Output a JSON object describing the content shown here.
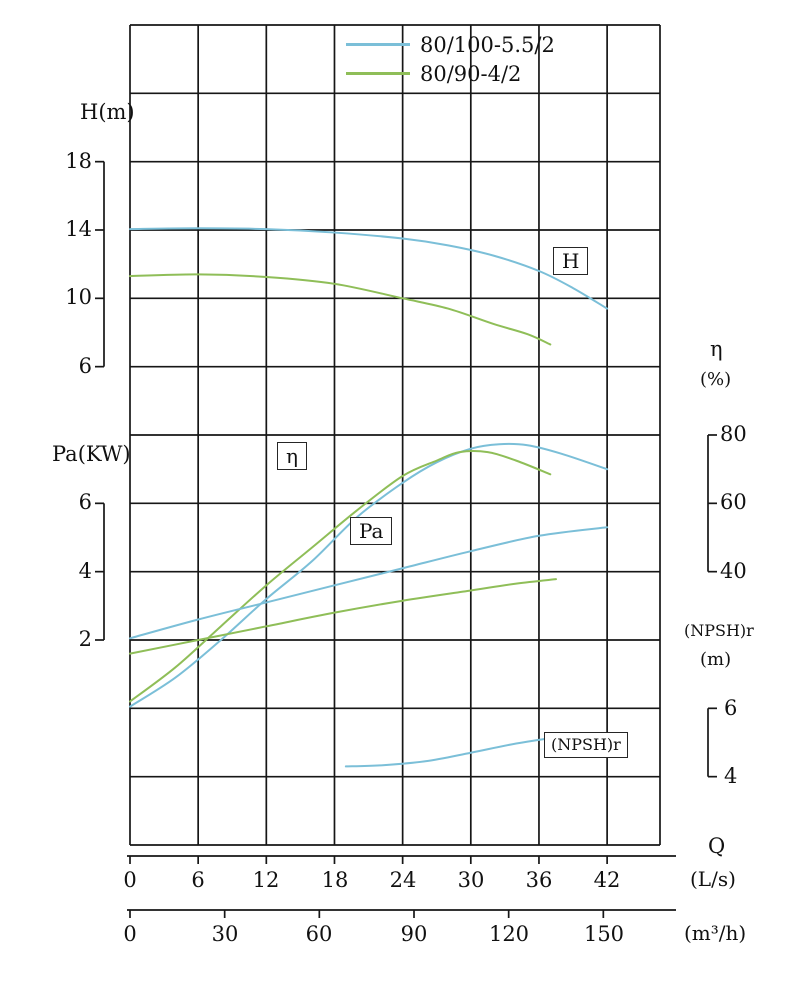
{
  "legend": {
    "items": [
      {
        "label": "80/100-5.5/2",
        "color": "#7bbfd8"
      },
      {
        "label": "80/90-4/2",
        "color": "#8fbe58"
      }
    ]
  },
  "axes": {
    "h": {
      "label": "H(m)",
      "ticks": [
        "18",
        "14",
        "10",
        "6"
      ]
    },
    "pa": {
      "label": "Pa(KW)",
      "ticks": [
        "6",
        "4",
        "2"
      ]
    },
    "eta": {
      "label": "η",
      "unit": "(%)",
      "ticks": [
        "80",
        "60",
        "40"
      ]
    },
    "npsh": {
      "label": "(NPSH)r",
      "unit": "(m)",
      "ticks": [
        "6",
        "4"
      ]
    },
    "q": {
      "label": "Q",
      "ls_unit": "(L/s)",
      "ls_ticks": [
        "0",
        "6",
        "12",
        "18",
        "24",
        "30",
        "36",
        "42"
      ],
      "m3h_unit": "(m³/h)",
      "m3h_ticks": [
        "0",
        "30",
        "60",
        "90",
        "120",
        "150"
      ]
    }
  },
  "curve_labels": {
    "h": "H",
    "eta": "η",
    "pa": "Pa",
    "npsh": "(NPSH)r"
  },
  "chart_data": {
    "type": "line",
    "x": {
      "label": "Q",
      "units": [
        "L/s",
        "m³/h"
      ],
      "range_ls": [
        0,
        42
      ],
      "grid": true
    },
    "y_axes": [
      {
        "name": "H(m)",
        "ticks": [
          18,
          14,
          10,
          6
        ],
        "side": "left"
      },
      {
        "name": "Pa(KW)",
        "ticks": [
          6,
          4,
          2
        ],
        "side": "left"
      },
      {
        "name": "η(%)",
        "ticks": [
          80,
          60,
          40
        ],
        "side": "right"
      },
      {
        "name": "(NPSH)r(m)",
        "ticks": [
          6,
          4
        ],
        "side": "right"
      }
    ],
    "series": [
      {
        "name": "H 80/100-5.5/2",
        "axis": "H(m)",
        "color": "#7bbfd8",
        "points": [
          [
            0,
            14.05
          ],
          [
            6,
            14.1
          ],
          [
            12,
            14.05
          ],
          [
            18,
            13.85
          ],
          [
            24,
            13.5
          ],
          [
            28,
            13.1
          ],
          [
            32,
            12.5
          ],
          [
            36,
            11.6
          ],
          [
            39,
            10.6
          ],
          [
            42,
            9.4
          ]
        ]
      },
      {
        "name": "H 80/90-4/2",
        "axis": "H(m)",
        "color": "#8fbe58",
        "points": [
          [
            0,
            11.3
          ],
          [
            6,
            11.4
          ],
          [
            12,
            11.25
          ],
          [
            18,
            10.85
          ],
          [
            24,
            10.0
          ],
          [
            28,
            9.4
          ],
          [
            32,
            8.5
          ],
          [
            35,
            7.9
          ],
          [
            37,
            7.3
          ]
        ]
      },
      {
        "name": "η 80/100-5.5/2",
        "axis": "η(%)",
        "color": "#7bbfd8",
        "points": [
          [
            0,
            0.5
          ],
          [
            4,
            9
          ],
          [
            8,
            20
          ],
          [
            12,
            32
          ],
          [
            16,
            43
          ],
          [
            20,
            56
          ],
          [
            24,
            66
          ],
          [
            27,
            72
          ],
          [
            30,
            76
          ],
          [
            32.5,
            77.3
          ],
          [
            35,
            77
          ],
          [
            38,
            74.5
          ],
          [
            42,
            70
          ]
        ]
      },
      {
        "name": "η 80/90-4/2",
        "axis": "η(%)",
        "color": "#8fbe58",
        "points": [
          [
            0,
            2
          ],
          [
            4,
            12
          ],
          [
            8,
            24
          ],
          [
            12,
            36
          ],
          [
            16,
            47
          ],
          [
            20,
            58
          ],
          [
            24,
            68
          ],
          [
            27,
            72.5
          ],
          [
            29,
            75
          ],
          [
            31.5,
            75
          ],
          [
            34,
            72.5
          ],
          [
            37,
            68.5
          ]
        ]
      },
      {
        "name": "Pa 80/100-5.5/2",
        "axis": "Pa(KW)",
        "color": "#7bbfd8",
        "points": [
          [
            0,
            2.05
          ],
          [
            6,
            2.6
          ],
          [
            12,
            3.1
          ],
          [
            18,
            3.6
          ],
          [
            24,
            4.1
          ],
          [
            30,
            4.6
          ],
          [
            36,
            5.05
          ],
          [
            42,
            5.3
          ]
        ]
      },
      {
        "name": "Pa 80/90-4/2",
        "axis": "Pa(KW)",
        "color": "#8fbe58",
        "points": [
          [
            0,
            1.6
          ],
          [
            6,
            2.0
          ],
          [
            12,
            2.4
          ],
          [
            18,
            2.8
          ],
          [
            24,
            3.15
          ],
          [
            30,
            3.45
          ],
          [
            34,
            3.65
          ],
          [
            37.5,
            3.78
          ]
        ]
      },
      {
        "name": "(NPSH)r 80/100-5.5/2",
        "axis": "(NPSH)r(m)",
        "color": "#7bbfd8",
        "points": [
          [
            19,
            4.3
          ],
          [
            22,
            4.33
          ],
          [
            26,
            4.45
          ],
          [
            30,
            4.7
          ],
          [
            34,
            4.97
          ],
          [
            38.5,
            5.2
          ]
        ]
      }
    ]
  }
}
